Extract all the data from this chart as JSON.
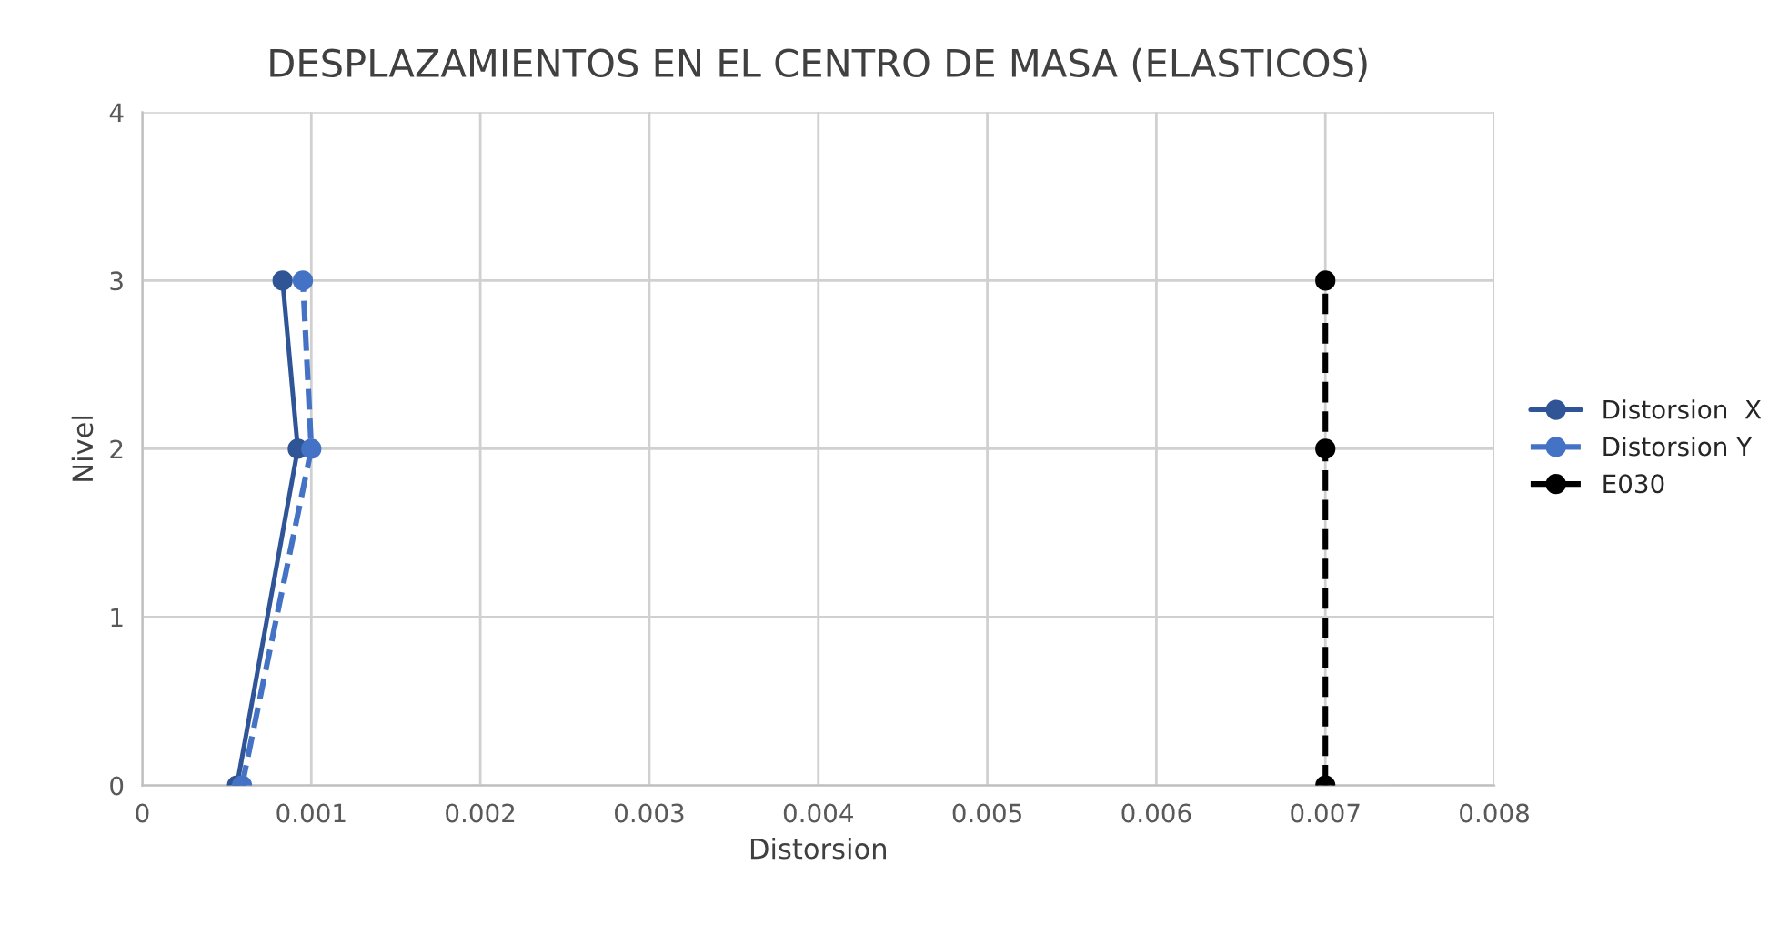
{
  "chart_data": {
    "type": "line",
    "title": "DESPLAZAMIENTOS EN EL CENTRO DE MASA (ELASTICOS)",
    "xlabel": "Distorsion",
    "ylabel": "Nivel",
    "xlim": [
      0,
      0.008
    ],
    "xticks": [
      0,
      0.001,
      0.002,
      0.003,
      0.004,
      0.005,
      0.006,
      0.007,
      0.008
    ],
    "ylim": [
      0,
      4
    ],
    "yticks": [
      0,
      1,
      2,
      3,
      4
    ],
    "grid": true,
    "legend": "right",
    "marker": "circle",
    "series": [
      {
        "name": "Distorsion  X",
        "color": "#2f5597",
        "line_style": "solid",
        "x": [
          0.00056,
          0.00092,
          0.00083
        ],
        "values": [
          0,
          2,
          3
        ]
      },
      {
        "name": "Distorsion Y",
        "color": "#4472c4",
        "line_style": "dashed",
        "x": [
          0.00059,
          0.001,
          0.00095
        ],
        "values": [
          0,
          2,
          3
        ]
      },
      {
        "name": "E030",
        "color": "#000000",
        "line_style": "dashed",
        "x": [
          0.007,
          0.007,
          0.007
        ],
        "values": [
          0,
          2,
          3
        ]
      }
    ]
  }
}
